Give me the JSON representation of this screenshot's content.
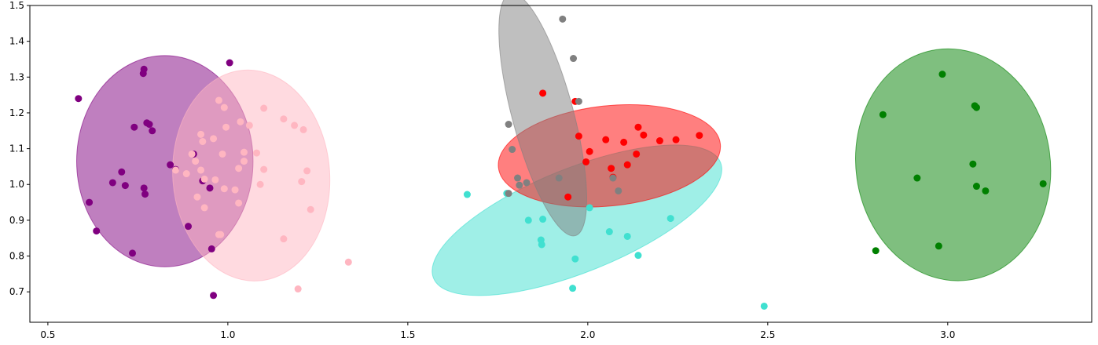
{
  "chart_data": {
    "type": "scatter",
    "title": "",
    "xlabel": "",
    "ylabel": "",
    "xlim": [
      0.45,
      3.4
    ],
    "ylim": [
      0.615,
      1.5
    ],
    "x_ticks": [
      "0.5",
      "1.0",
      "1.5",
      "2.0",
      "2.5",
      "3.0"
    ],
    "y_ticks": [
      "0.7",
      "0.8",
      "0.9",
      "1.0",
      "1.1",
      "1.2",
      "1.3",
      "1.4",
      "1.5"
    ],
    "grid": false,
    "legend": "none",
    "series": [
      {
        "color": "#800080",
        "points": [
          [
            0.585,
            1.24
          ],
          [
            0.615,
            0.95
          ],
          [
            0.635,
            0.87
          ],
          [
            0.68,
            1.005
          ],
          [
            0.705,
            1.035
          ],
          [
            0.715,
            0.997
          ],
          [
            0.735,
            0.808
          ],
          [
            0.74,
            1.16
          ],
          [
            0.765,
            1.31
          ],
          [
            0.767,
            1.322
          ],
          [
            0.767,
            0.99
          ],
          [
            0.77,
            0.973
          ],
          [
            0.775,
            1.172
          ],
          [
            0.782,
            1.168
          ],
          [
            0.79,
            1.15
          ],
          [
            0.84,
            1.055
          ],
          [
            0.855,
            1.042
          ],
          [
            0.89,
            0.883
          ],
          [
            0.905,
            1.085
          ],
          [
            0.93,
            1.01
          ],
          [
            0.96,
            0.69
          ],
          [
            0.955,
            0.82
          ],
          [
            0.95,
            0.99
          ],
          [
            1.005,
            1.34
          ]
        ],
        "ellipse": {
          "cx": 0.825,
          "cy": 1.065,
          "rx": 0.245,
          "ry": 0.295,
          "angle_deg": 0
        }
      },
      {
        "color": "#ffb6c1",
        "points": [
          [
            0.855,
            1.04
          ],
          [
            0.885,
            1.03
          ],
          [
            0.9,
            1.085
          ],
          [
            0.91,
            1.065
          ],
          [
            0.915,
            0.965
          ],
          [
            0.925,
            1.14
          ],
          [
            0.93,
            1.12
          ],
          [
            0.925,
            1.04
          ],
          [
            0.935,
            1.015
          ],
          [
            0.935,
            0.935
          ],
          [
            0.96,
            1.128
          ],
          [
            0.965,
            1.013
          ],
          [
            0.975,
            1.235
          ],
          [
            0.975,
            0.86
          ],
          [
            0.98,
            0.86
          ],
          [
            0.985,
            1.085
          ],
          [
            0.99,
            0.988
          ],
          [
            0.99,
            1.215
          ],
          [
            0.995,
            1.16
          ],
          [
            1.02,
            0.985
          ],
          [
            1.03,
            1.045
          ],
          [
            1.03,
            0.948
          ],
          [
            1.035,
            1.175
          ],
          [
            1.045,
            1.09
          ],
          [
            1.045,
            1.065
          ],
          [
            1.06,
            1.165
          ],
          [
            1.08,
            1.088
          ],
          [
            1.09,
            1.0
          ],
          [
            1.1,
            1.213
          ],
          [
            1.1,
            1.042
          ],
          [
            1.155,
            1.183
          ],
          [
            1.155,
            0.848
          ],
          [
            1.185,
            1.165
          ],
          [
            1.195,
            0.708
          ],
          [
            1.205,
            1.008
          ],
          [
            1.21,
            1.153
          ],
          [
            1.22,
            1.038
          ],
          [
            1.23,
            0.93
          ],
          [
            1.335,
            0.783
          ]
        ],
        "ellipse": {
          "cx": 1.065,
          "cy": 1.025,
          "rx": 0.218,
          "ry": 0.295,
          "angle_deg": 4
        }
      },
      {
        "color": "#40e0d0",
        "points": [
          [
            1.665,
            0.972
          ],
          [
            1.775,
            0.975
          ],
          [
            1.835,
            0.9
          ],
          [
            1.87,
            0.845
          ],
          [
            1.875,
            0.903
          ],
          [
            1.872,
            0.832
          ],
          [
            1.958,
            0.71
          ],
          [
            1.965,
            0.792
          ],
          [
            2.005,
            0.935
          ],
          [
            2.06,
            0.868
          ],
          [
            2.11,
            0.855
          ],
          [
            2.14,
            0.802
          ],
          [
            2.23,
            0.905
          ],
          [
            2.49,
            0.66
          ]
        ],
        "ellipse": {
          "cx": 1.97,
          "cy": 0.9,
          "rx": 0.43,
          "ry": 0.145,
          "angle_deg": 22
        }
      },
      {
        "color": "#ff0000",
        "points": [
          [
            1.875,
            1.255
          ],
          [
            1.945,
            0.965
          ],
          [
            1.965,
            1.232
          ],
          [
            1.975,
            1.135
          ],
          [
            1.995,
            1.063
          ],
          [
            2.005,
            1.092
          ],
          [
            2.05,
            1.125
          ],
          [
            2.065,
            1.045
          ],
          [
            2.07,
            1.02
          ],
          [
            2.1,
            1.118
          ],
          [
            2.11,
            1.055
          ],
          [
            2.135,
            1.085
          ],
          [
            2.14,
            1.16
          ],
          [
            2.155,
            1.138
          ],
          [
            2.2,
            1.122
          ],
          [
            2.245,
            1.125
          ],
          [
            2.31,
            1.137
          ]
        ],
        "ellipse": {
          "cx": 2.06,
          "cy": 1.08,
          "rx": 0.31,
          "ry": 0.14,
          "angle_deg": 6
        }
      },
      {
        "color": "#808080",
        "points": [
          [
            1.78,
            1.168
          ],
          [
            1.78,
            0.975
          ],
          [
            1.79,
            1.098
          ],
          [
            1.805,
            1.018
          ],
          [
            1.81,
            0.998
          ],
          [
            1.83,
            1.005
          ],
          [
            1.92,
            1.018
          ],
          [
            1.93,
            1.462
          ],
          [
            1.96,
            1.352
          ],
          [
            1.975,
            1.232
          ],
          [
            2.07,
            1.018
          ],
          [
            2.085,
            0.982
          ]
        ],
        "ellipse": {
          "cx": 1.875,
          "cy": 1.195,
          "rx": 0.085,
          "ry": 0.35,
          "angle_deg": 15
        }
      },
      {
        "color": "#008000",
        "points": [
          [
            2.8,
            0.815
          ],
          [
            2.82,
            1.195
          ],
          [
            2.915,
            1.018
          ],
          [
            2.975,
            0.828
          ],
          [
            2.985,
            1.308
          ],
          [
            3.07,
            1.057
          ],
          [
            3.075,
            1.22
          ],
          [
            3.08,
            0.995
          ],
          [
            3.08,
            1.215
          ],
          [
            3.105,
            0.982
          ],
          [
            3.265,
            1.002
          ]
        ],
        "ellipse": {
          "cx": 3.015,
          "cy": 1.055,
          "rx": 0.27,
          "ry": 0.325,
          "angle_deg": 8
        }
      }
    ]
  }
}
